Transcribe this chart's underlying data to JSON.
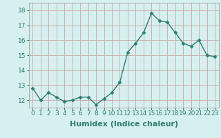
{
  "x": [
    0,
    1,
    2,
    3,
    4,
    5,
    6,
    7,
    8,
    9,
    10,
    11,
    12,
    13,
    14,
    15,
    16,
    17,
    18,
    19,
    20,
    21,
    22,
    23
  ],
  "y": [
    12.8,
    12.0,
    12.5,
    12.2,
    11.9,
    12.0,
    12.2,
    12.2,
    11.7,
    12.1,
    12.5,
    13.2,
    15.2,
    15.8,
    16.5,
    17.8,
    17.3,
    17.2,
    16.5,
    15.8,
    15.6,
    16.0,
    15.0,
    14.9
  ],
  "line_color": "#2e7d6e",
  "marker": "D",
  "markersize": 2.5,
  "linewidth": 1.0,
  "xlabel": "Humidex (Indice chaleur)",
  "xlabel_fontsize": 8,
  "bg_color": "#d6f0ef",
  "grid_color": "#c8a8a8",
  "ylim": [
    11.5,
    18.5
  ],
  "xlim": [
    -0.5,
    23.5
  ],
  "yticks": [
    12,
    13,
    14,
    15,
    16,
    17,
    18
  ],
  "xticks": [
    0,
    1,
    2,
    3,
    4,
    5,
    6,
    7,
    8,
    9,
    10,
    11,
    12,
    13,
    14,
    15,
    16,
    17,
    18,
    19,
    20,
    21,
    22,
    23
  ],
  "tick_fontsize": 6.5
}
